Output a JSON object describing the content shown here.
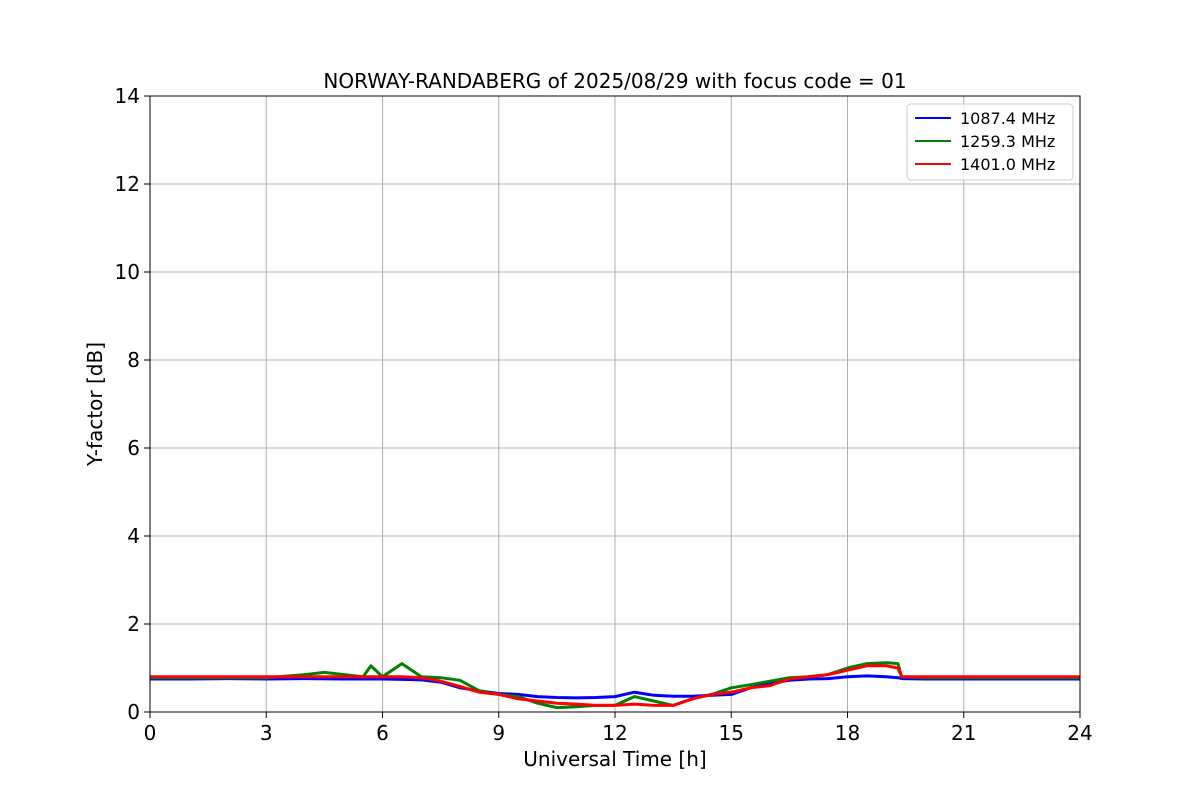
{
  "chart_data": {
    "type": "line",
    "title": "NORWAY-RANDABERG of 2025/08/29 with focus code = 01",
    "xlabel": "Universal Time [h]",
    "ylabel": "Y-factor [dB]",
    "xlim": [
      0,
      24
    ],
    "ylim": [
      0,
      14
    ],
    "xticks": [
      0,
      3,
      6,
      9,
      12,
      15,
      18,
      21,
      24
    ],
    "yticks": [
      0,
      2,
      4,
      6,
      8,
      10,
      12,
      14
    ],
    "grid": true,
    "legend_position": "top-right",
    "series": [
      {
        "name": "1087.4 MHz",
        "color": "#0000ff",
        "x": [
          0,
          1,
          2,
          3,
          4,
          5,
          6,
          6.5,
          7,
          7.5,
          8,
          8.5,
          9,
          9.5,
          10,
          10.5,
          11,
          11.5,
          12,
          12.5,
          13,
          13.5,
          14,
          14.5,
          15,
          15.5,
          16,
          16.5,
          17,
          17.5,
          18,
          18.5,
          19,
          19.3,
          19.4,
          20,
          21,
          22,
          23,
          24
        ],
        "y": [
          0.75,
          0.75,
          0.76,
          0.75,
          0.76,
          0.75,
          0.75,
          0.74,
          0.73,
          0.68,
          0.55,
          0.48,
          0.42,
          0.4,
          0.35,
          0.33,
          0.32,
          0.33,
          0.35,
          0.45,
          0.38,
          0.36,
          0.36,
          0.38,
          0.4,
          0.55,
          0.65,
          0.72,
          0.75,
          0.76,
          0.8,
          0.82,
          0.8,
          0.78,
          0.76,
          0.75,
          0.75,
          0.75,
          0.75,
          0.75
        ]
      },
      {
        "name": "1259.3 MHz",
        "color": "#008000",
        "x": [
          0,
          1,
          2,
          3,
          4,
          4.5,
          5,
          5.5,
          5.7,
          6,
          6.5,
          7,
          7.5,
          8,
          8.5,
          9,
          9.5,
          10,
          10.5,
          11,
          11.5,
          12,
          12.5,
          13,
          13.5,
          14,
          14.5,
          15,
          15.5,
          16,
          16.5,
          17,
          17.5,
          18,
          18.5,
          19,
          19.3,
          19.4,
          20,
          21,
          22,
          23,
          24
        ],
        "y": [
          0.78,
          0.78,
          0.78,
          0.78,
          0.85,
          0.9,
          0.85,
          0.8,
          1.05,
          0.8,
          1.1,
          0.8,
          0.78,
          0.72,
          0.48,
          0.4,
          0.35,
          0.2,
          0.1,
          0.12,
          0.15,
          0.15,
          0.35,
          0.25,
          0.15,
          0.3,
          0.4,
          0.55,
          0.62,
          0.7,
          0.78,
          0.8,
          0.85,
          1.0,
          1.1,
          1.12,
          1.1,
          0.8,
          0.78,
          0.78,
          0.78,
          0.78,
          0.78
        ]
      },
      {
        "name": "1401.0 MHz",
        "color": "#ff0000",
        "x": [
          0,
          1,
          2,
          3,
          4,
          5,
          6,
          6.5,
          7,
          7.5,
          8,
          8.5,
          9,
          9.5,
          10,
          10.5,
          11,
          11.5,
          12,
          12.5,
          13,
          13.5,
          14,
          14.5,
          15,
          15.5,
          16,
          16.5,
          17,
          17.5,
          18,
          18.5,
          19,
          19.3,
          19.4,
          20,
          21,
          22,
          23,
          24
        ],
        "y": [
          0.8,
          0.8,
          0.8,
          0.8,
          0.8,
          0.8,
          0.8,
          0.8,
          0.78,
          0.7,
          0.58,
          0.45,
          0.4,
          0.3,
          0.25,
          0.2,
          0.18,
          0.15,
          0.15,
          0.18,
          0.15,
          0.15,
          0.3,
          0.4,
          0.45,
          0.55,
          0.6,
          0.75,
          0.8,
          0.85,
          0.95,
          1.05,
          1.05,
          1.0,
          0.8,
          0.8,
          0.8,
          0.8,
          0.8,
          0.8
        ]
      }
    ]
  }
}
